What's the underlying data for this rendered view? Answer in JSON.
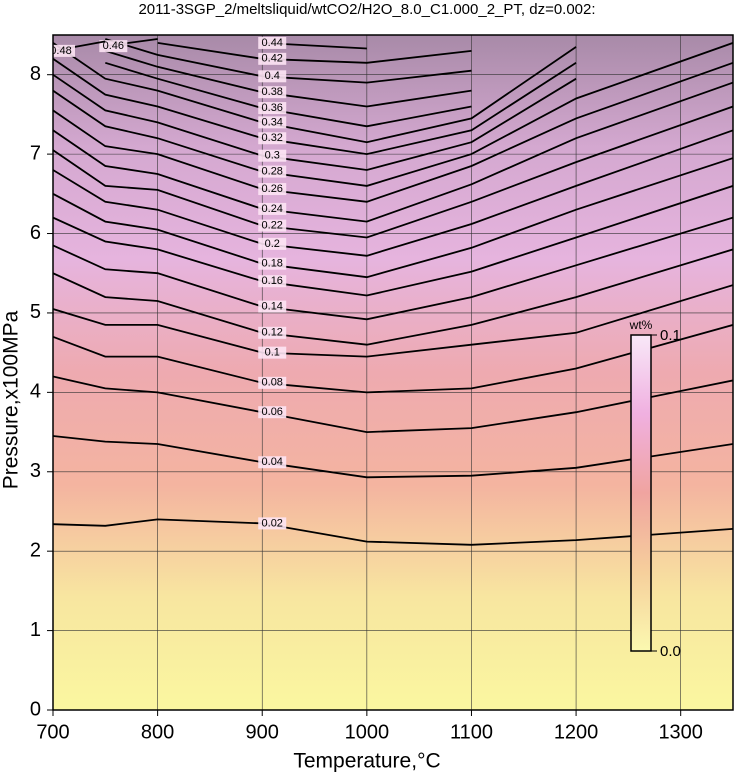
{
  "chart_data": {
    "type": "contour",
    "title": "2011-3SGP_2/meltsliquid/wtCO2/H2O_8.0_C1.000_2_PT, dz=0.002:",
    "xlabel": "Temperature,°C",
    "ylabel": "Pressure,x100MPa",
    "xlim": [
      700,
      1350
    ],
    "ylim": [
      0,
      8.5
    ],
    "xticks": [
      700,
      800,
      900,
      1000,
      1100,
      1200,
      1300
    ],
    "yticks": [
      0,
      1,
      2,
      3,
      4,
      5,
      6,
      7,
      8
    ],
    "grid": true,
    "x": [
      700,
      750,
      800,
      900,
      1000,
      1100,
      1200,
      1350
    ],
    "levels": [
      0.02,
      0.04,
      0.06,
      0.08,
      0.1,
      0.12,
      0.14,
      0.16,
      0.18,
      0.2,
      0.22,
      0.24,
      0.26,
      0.28,
      0.3,
      0.32,
      0.34,
      0.36,
      0.38,
      0.4,
      0.42,
      0.44,
      0.46,
      0.48
    ],
    "contours": [
      [
        2.34,
        2.32,
        2.4,
        2.35,
        2.12,
        2.08,
        2.14,
        2.28
      ],
      [
        3.45,
        3.38,
        3.35,
        3.12,
        2.93,
        2.95,
        3.05,
        3.35
      ],
      [
        4.2,
        4.05,
        4.0,
        3.75,
        3.5,
        3.55,
        3.75,
        4.15
      ],
      [
        4.7,
        4.45,
        4.45,
        4.12,
        4.0,
        4.05,
        4.3,
        4.85
      ],
      [
        5.05,
        4.85,
        4.85,
        4.5,
        4.45,
        4.6,
        4.75,
        5.35
      ],
      [
        5.5,
        5.2,
        5.15,
        4.75,
        4.6,
        4.85,
        5.2,
        5.8
      ],
      [
        5.85,
        5.55,
        5.5,
        5.08,
        4.92,
        5.2,
        5.6,
        6.2
      ],
      [
        6.2,
        5.9,
        5.8,
        5.4,
        5.22,
        5.52,
        5.95,
        6.6
      ],
      [
        6.5,
        6.15,
        6.05,
        5.62,
        5.45,
        5.82,
        6.3,
        6.95
      ],
      [
        6.8,
        6.4,
        6.3,
        5.87,
        5.72,
        6.12,
        6.6,
        7.3
      ],
      [
        7.05,
        6.6,
        6.55,
        6.1,
        5.95,
        6.4,
        6.9,
        7.6
      ],
      [
        7.3,
        6.85,
        6.75,
        6.31,
        6.15,
        6.62,
        7.2,
        7.9
      ],
      [
        7.55,
        7.1,
        7.0,
        6.56,
        6.4,
        6.85,
        7.45,
        8.15
      ],
      [
        7.8,
        7.35,
        7.2,
        6.78,
        6.6,
        7.0,
        7.7,
        8.4
      ],
      [
        8.0,
        7.55,
        7.4,
        6.98,
        6.8,
        7.15,
        7.95,
        null
      ],
      [
        8.2,
        7.75,
        7.6,
        7.2,
        7.0,
        7.3,
        8.15,
        null
      ],
      [
        8.4,
        7.95,
        7.8,
        7.4,
        7.15,
        7.45,
        8.35,
        null
      ],
      [
        null,
        8.15,
        7.95,
        7.58,
        7.35,
        7.6,
        null,
        null
      ],
      [
        null,
        8.3,
        8.1,
        7.78,
        7.6,
        7.8,
        null,
        null
      ],
      [
        null,
        8.45,
        8.25,
        7.98,
        7.9,
        8.05,
        null,
        null
      ],
      [
        null,
        null,
        8.4,
        8.2,
        8.15,
        8.3,
        null,
        null
      ],
      [
        null,
        null,
        null,
        8.4,
        8.33,
        null,
        null,
        null
      ],
      [
        null,
        8.36,
        8.45,
        null,
        null,
        null,
        null,
        null
      ],
      [
        8.3,
        8.42,
        null,
        null,
        null,
        null,
        null,
        null
      ]
    ],
    "colorbar": {
      "label": "wt%",
      "lim": [
        0,
        0.1
      ],
      "ticks": [
        {
          "value": 0,
          "label": "0.0"
        },
        {
          "value": 0.1,
          "label": "0.1"
        }
      ],
      "colors": [
        "#fbf9b0",
        "#f6cf9c",
        "#f0a4a0",
        "#f0b0e0",
        "#f8e8f8"
      ]
    },
    "background_colors": [
      "#faf7a0",
      "#f8e6a0",
      "#f4b4a0",
      "#eeaab0",
      "#e6b4de",
      "#d4a8d0",
      "#a88aa8"
    ]
  }
}
